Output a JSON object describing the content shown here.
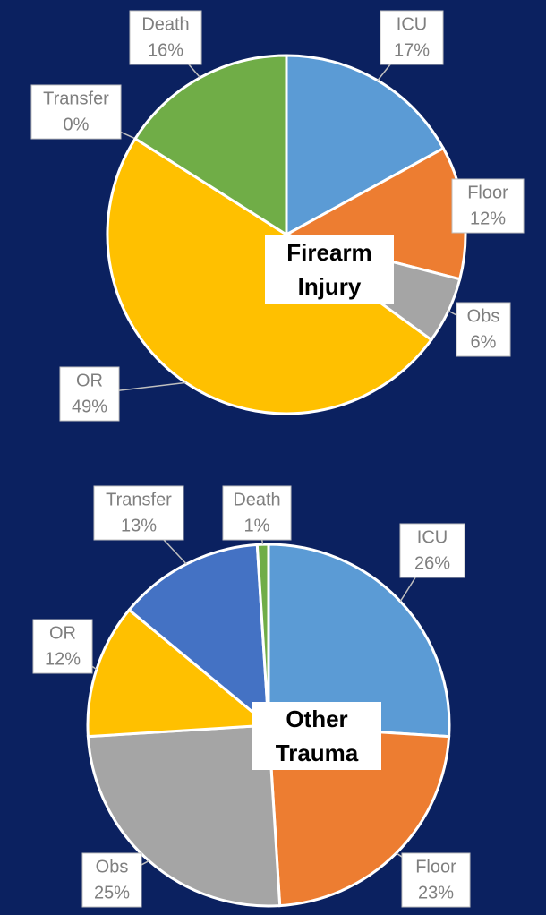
{
  "chart_data": [
    {
      "type": "pie",
      "title": "Firearm Injury",
      "categories": [
        "ICU",
        "Floor",
        "Obs",
        "OR",
        "Transfer",
        "Death"
      ],
      "values": [
        17,
        12,
        6,
        49,
        0,
        16
      ],
      "value_labels": [
        "17%",
        "12%",
        "6%",
        "49%",
        "0%",
        "16%"
      ],
      "colors": [
        "#5b9bd5",
        "#ed7d31",
        "#a5a5a5",
        "#ffc000",
        "#4472c4",
        "#70ad47"
      ]
    },
    {
      "type": "pie",
      "title": "Other Trauma",
      "categories": [
        "ICU",
        "Floor",
        "Obs",
        "OR",
        "Transfer",
        "Death"
      ],
      "values": [
        26,
        23,
        25,
        12,
        13,
        1
      ],
      "value_labels": [
        "26%",
        "23%",
        "25%",
        "12%",
        "13%",
        "1%"
      ],
      "colors": [
        "#5b9bd5",
        "#ed7d31",
        "#a5a5a5",
        "#ffc000",
        "#4472c4",
        "#70ad47"
      ]
    }
  ]
}
